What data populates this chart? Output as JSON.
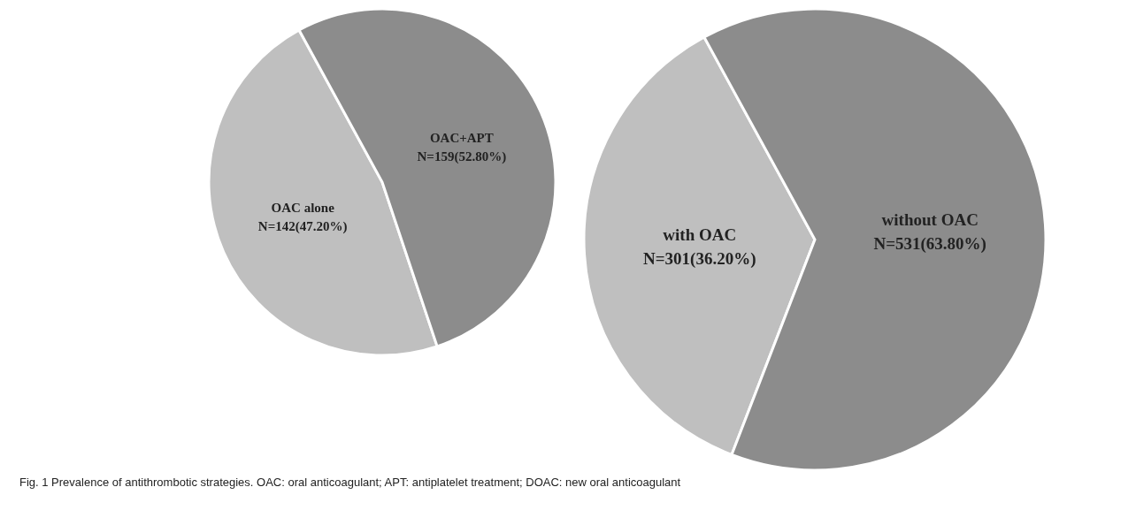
{
  "chart_data": [
    {
      "type": "pie",
      "categories": [
        "OAC alone",
        "OAC+APT"
      ],
      "values": [
        142,
        159
      ],
      "value_labels": [
        "N=142(47.20%)",
        "N=159(52.80%)"
      ],
      "colors": [
        "#bfbfbf",
        "#8c8c8c"
      ]
    },
    {
      "type": "pie",
      "categories": [
        "with OAC",
        "without OAC"
      ],
      "values": [
        301,
        531
      ],
      "value_labels": [
        "N=301(36.20%)",
        "N=531(63.80%)"
      ],
      "colors": [
        "#bfbfbf",
        "#8c8c8c"
      ],
      "annotations": [
        "Fig. 1  Prevalence of antithrombotic strategies. OAC: oral anticoagulant; APT: antiplatelet treatment; DOAC: new oral anticoagulant"
      ]
    }
  ]
}
